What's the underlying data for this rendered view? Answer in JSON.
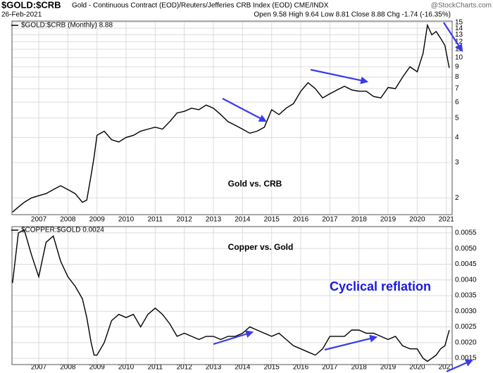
{
  "header": {
    "symbol": "$GOLD:$CRB",
    "description": "Gold - Continuous Contract (EOD)/Reuters/Jefferies CRB Index (EOD) CME/INDX",
    "date": "26-Feb-2021",
    "quote": "Open 9.58 High 9.64 Low 8.81 Close 8.88 Chg -1.74 (-16.35%)",
    "source": "@StockCharts.com"
  },
  "chart_data": [
    {
      "type": "line",
      "log_scale": true,
      "grid": true,
      "annotations": [
        "Gold vs. CRB"
      ],
      "x": [
        2006.1,
        2006.3,
        2006.5,
        2006.75,
        2007.0,
        2007.25,
        2007.5,
        2007.75,
        2008.0,
        2008.25,
        2008.5,
        2008.65,
        2008.8,
        2008.9,
        2009.0,
        2009.25,
        2009.5,
        2009.75,
        2010.0,
        2010.25,
        2010.5,
        2010.75,
        2011.0,
        2011.25,
        2011.5,
        2011.75,
        2012.0,
        2012.25,
        2012.5,
        2012.75,
        2013.0,
        2013.25,
        2013.5,
        2013.75,
        2014.0,
        2014.25,
        2014.5,
        2014.75,
        2015.0,
        2015.25,
        2015.5,
        2015.75,
        2016.0,
        2016.25,
        2016.5,
        2016.75,
        2017.0,
        2017.25,
        2017.5,
        2017.75,
        2018.0,
        2018.25,
        2018.5,
        2018.75,
        2019.0,
        2019.25,
        2019.5,
        2019.75,
        2020.0,
        2020.2,
        2020.35,
        2020.5,
        2020.65,
        2020.8,
        2020.95,
        2021.1
      ],
      "series": [
        {
          "name": "$GOLD:$CRB (Monthly) 8.88",
          "color": "#000000",
          "values": [
            1.7,
            1.8,
            1.9,
            2.0,
            2.05,
            2.1,
            2.2,
            2.3,
            2.2,
            2.1,
            1.9,
            1.95,
            2.6,
            3.2,
            4.1,
            4.3,
            3.9,
            3.8,
            4.0,
            4.1,
            4.3,
            4.4,
            4.5,
            4.4,
            4.8,
            5.3,
            5.4,
            5.6,
            5.5,
            5.8,
            5.6,
            5.2,
            4.8,
            4.6,
            4.4,
            4.2,
            4.3,
            4.5,
            5.5,
            5.2,
            5.6,
            5.9,
            6.8,
            7.5,
            7.0,
            6.3,
            6.6,
            6.9,
            7.2,
            6.9,
            6.8,
            6.8,
            6.4,
            6.3,
            7.1,
            7.0,
            8.0,
            9.0,
            8.5,
            10.5,
            14.5,
            13.0,
            13.5,
            12.5,
            11.5,
            8.88
          ]
        }
      ],
      "xlim": [
        2006.08,
        2021.2
      ],
      "xticks": [
        2007,
        2008,
        2009,
        2010,
        2011,
        2012,
        2013,
        2014,
        2015,
        2016,
        2017,
        2018,
        2019,
        2020,
        2021
      ],
      "ylim": [
        1.65,
        15.2
      ],
      "yticks": [
        2,
        3,
        4,
        5,
        6,
        7,
        8,
        9,
        10,
        11,
        12,
        13,
        14,
        15
      ]
    },
    {
      "type": "line",
      "log_scale": false,
      "grid": true,
      "annotations": [
        "Copper vs. Gold",
        "Cyclical reflation"
      ],
      "x": [
        2006.1,
        2006.3,
        2006.5,
        2006.75,
        2007.0,
        2007.25,
        2007.5,
        2007.75,
        2008.0,
        2008.25,
        2008.5,
        2008.65,
        2008.8,
        2008.9,
        2009.0,
        2009.25,
        2009.5,
        2009.75,
        2010.0,
        2010.25,
        2010.5,
        2010.75,
        2011.0,
        2011.25,
        2011.5,
        2011.75,
        2012.0,
        2012.25,
        2012.5,
        2012.75,
        2013.0,
        2013.25,
        2013.5,
        2013.75,
        2014.0,
        2014.25,
        2014.5,
        2014.75,
        2015.0,
        2015.25,
        2015.5,
        2015.75,
        2016.0,
        2016.25,
        2016.5,
        2016.75,
        2017.0,
        2017.25,
        2017.5,
        2017.75,
        2018.0,
        2018.25,
        2018.5,
        2018.75,
        2019.0,
        2019.25,
        2019.5,
        2019.75,
        2020.0,
        2020.2,
        2020.35,
        2020.5,
        2020.65,
        2020.8,
        2020.95,
        2021.1
      ],
      "series": [
        {
          "name": "$COPPER:$GOLD 0.0024",
          "color": "#000000",
          "values": [
            0.0039,
            0.0055,
            0.0056,
            0.0048,
            0.0041,
            0.0052,
            0.0054,
            0.0046,
            0.0041,
            0.0038,
            0.0034,
            0.0028,
            0.002,
            0.0016,
            0.0016,
            0.002,
            0.0027,
            0.0029,
            0.0028,
            0.0029,
            0.0025,
            0.0029,
            0.0031,
            0.0029,
            0.0026,
            0.0022,
            0.0023,
            0.0022,
            0.0021,
            0.0022,
            0.0022,
            0.0021,
            0.0022,
            0.0022,
            0.0023,
            0.0025,
            0.0024,
            0.0023,
            0.0022,
            0.0023,
            0.0021,
            0.0019,
            0.0018,
            0.0017,
            0.0016,
            0.0018,
            0.0022,
            0.0022,
            0.0022,
            0.0024,
            0.0024,
            0.0023,
            0.0023,
            0.0022,
            0.0021,
            0.0022,
            0.0019,
            0.0018,
            0.0018,
            0.0015,
            0.0014,
            0.0015,
            0.0016,
            0.0018,
            0.0019,
            0.0024
          ]
        }
      ],
      "xlim": [
        2006.08,
        2021.2
      ],
      "xticks": [
        2007,
        2008,
        2009,
        2010,
        2011,
        2012,
        2013,
        2014,
        2015,
        2016,
        2017,
        2018,
        2019,
        2020,
        2021
      ],
      "ylim": [
        0.0013,
        0.0057
      ],
      "yticks": [
        0.0015,
        {
          "value": 0.002,
          "label": "0.0020"
        },
        0.0025,
        {
          "value": 0.003,
          "label": "0.0030"
        },
        0.0035,
        {
          "value": 0.004,
          "label": "0.0040"
        },
        0.0045,
        {
          "value": 0.005,
          "label": "0.0050"
        },
        0.0055
      ]
    }
  ]
}
